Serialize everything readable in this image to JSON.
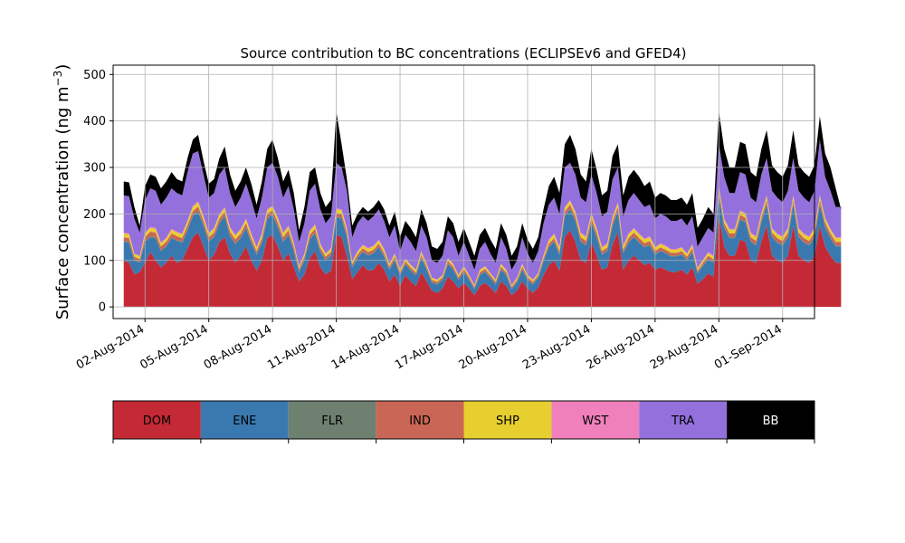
{
  "chart_data": {
    "type": "area",
    "stacked": true,
    "title": "Source contribution to BC concentrations (ECLIPSEv6 and GFED4)",
    "ylabel_main": "Surface concentration (ng m",
    "ylabel_sup": "−3",
    "ylabel_close": ")",
    "xlabel": "",
    "ylim": [
      -25,
      520
    ],
    "yticks": [
      0,
      100,
      200,
      300,
      400,
      500
    ],
    "x_start": "2014-07-31T12:00",
    "x_end": "2014-09-02T12:00",
    "xticks": [
      {
        "date": "2014-08-02",
        "label": "02-Aug-2014"
      },
      {
        "date": "2014-08-05",
        "label": "05-Aug-2014"
      },
      {
        "date": "2014-08-08",
        "label": "08-Aug-2014"
      },
      {
        "date": "2014-08-11",
        "label": "11-Aug-2014"
      },
      {
        "date": "2014-08-14",
        "label": "14-Aug-2014"
      },
      {
        "date": "2014-08-17",
        "label": "17-Aug-2014"
      },
      {
        "date": "2014-08-20",
        "label": "20-Aug-2014"
      },
      {
        "date": "2014-08-23",
        "label": "23-Aug-2014"
      },
      {
        "date": "2014-08-26",
        "label": "26-Aug-2014"
      },
      {
        "date": "2014-08-29",
        "label": "29-Aug-2014"
      },
      {
        "date": "2014-09-01",
        "label": "01-Sep-2014"
      }
    ],
    "grid": true,
    "legend_position": "below",
    "series_colors": {
      "DOM": "#c42a36",
      "ENE": "#3a79b0",
      "FLR": "#6e8070",
      "IND": "#c96655",
      "SHP": "#e6cf2e",
      "WST": "#f080bb",
      "TRA": "#9370db",
      "BB": "#000000"
    },
    "legend": [
      {
        "label": "DOM",
        "color": "#c42a36",
        "text_color": "#000000"
      },
      {
        "label": "ENE",
        "color": "#3a79b0",
        "text_color": "#000000"
      },
      {
        "label": "FLR",
        "color": "#6e8070",
        "text_color": "#000000"
      },
      {
        "label": "IND",
        "color": "#c96655",
        "text_color": "#000000"
      },
      {
        "label": "SHP",
        "color": "#e6cf2e",
        "text_color": "#000000"
      },
      {
        "label": "WST",
        "color": "#f080bb",
        "text_color": "#000000"
      },
      {
        "label": "TRA",
        "color": "#9370db",
        "text_color": "#000000"
      },
      {
        "label": "BB",
        "color": "#000000",
        "text_color": "#ffffff"
      }
    ],
    "time_series": {
      "start": "2014-08-01T00:00",
      "step_hours": 6,
      "cumulative_note": "values are cumulative stack tops in ng m-3: DOM, +ENE, +FLR, +IND, +SHP, +WST, +TRA, +BB",
      "DOM": [
        100,
        95,
        70,
        75,
        95,
        118,
        100,
        85,
        95,
        110,
        95,
        100,
        125,
        150,
        160,
        130,
        100,
        112,
        140,
        150,
        115,
        95,
        110,
        130,
        100,
        78,
        100,
        148,
        155,
        130,
        100,
        115,
        85,
        55,
        70,
        105,
        120,
        85,
        70,
        78,
        155,
        150,
        110,
        60,
        75,
        90,
        78,
        80,
        95,
        80,
        55,
        70,
        45,
        68,
        55,
        45,
        75,
        55,
        35,
        30,
        40,
        65,
        55,
        40,
        52,
        40,
        25,
        45,
        52,
        42,
        30,
        55,
        45,
        25,
        35,
        55,
        40,
        30,
        42,
        68,
        90,
        100,
        78,
        150,
        165,
        140,
        100,
        95,
        140,
        110,
        80,
        85,
        135,
        160,
        80,
        100,
        110,
        100,
        90,
        95,
        80,
        85,
        80,
        75,
        75,
        80,
        70,
        85,
        50,
        60,
        72,
        65,
        195,
        130,
        110,
        110,
        145,
        140,
        100,
        95,
        140,
        175,
        110,
        100,
        95,
        110,
        175,
        110,
        100,
        95,
        110,
        175,
        130,
        110,
        95,
        95
      ],
      "ENE": [
        140,
        138,
        100,
        95,
        140,
        150,
        148,
        120,
        130,
        148,
        142,
        138,
        165,
        195,
        205,
        175,
        140,
        150,
        180,
        195,
        152,
        135,
        148,
        170,
        138,
        112,
        138,
        190,
        198,
        172,
        140,
        155,
        120,
        75,
        100,
        145,
        158,
        118,
        100,
        110,
        192,
        190,
        150,
        85,
        105,
        118,
        110,
        115,
        128,
        108,
        80,
        100,
        68,
        92,
        78,
        68,
        105,
        80,
        52,
        48,
        58,
        92,
        80,
        58,
        75,
        58,
        38,
        68,
        75,
        62,
        48,
        80,
        68,
        38,
        52,
        80,
        58,
        48,
        62,
        98,
        128,
        140,
        112,
        195,
        210,
        185,
        140,
        132,
        182,
        150,
        112,
        120,
        175,
        205,
        115,
        138,
        150,
        138,
        128,
        132,
        112,
        120,
        115,
        108,
        108,
        112,
        100,
        118,
        72,
        88,
        102,
        95,
        240,
        170,
        148,
        148,
        188,
        182,
        140,
        132,
        182,
        220,
        150,
        138,
        132,
        150,
        220,
        150,
        138,
        132,
        150,
        220,
        172,
        148,
        130,
        130
      ],
      "FLR": [
        142,
        140,
        102,
        97,
        142,
        152,
        150,
        122,
        132,
        150,
        144,
        140,
        167,
        197,
        207,
        177,
        142,
        152,
        182,
        197,
        154,
        137,
        150,
        172,
        140,
        114,
        140,
        192,
        200,
        174,
        142,
        157,
        122,
        77,
        102,
        147,
        160,
        120,
        102,
        112,
        194,
        192,
        152,
        87,
        107,
        120,
        112,
        117,
        130,
        110,
        82,
        102,
        70,
        94,
        80,
        70,
        107,
        82,
        54,
        50,
        60,
        94,
        82,
        60,
        77,
        60,
        40,
        70,
        77,
        64,
        50,
        82,
        70,
        40,
        54,
        82,
        60,
        50,
        64,
        100,
        130,
        142,
        114,
        197,
        212,
        187,
        142,
        134,
        184,
        152,
        114,
        122,
        177,
        207,
        117,
        140,
        152,
        140,
        130,
        134,
        114,
        122,
        117,
        110,
        110,
        114,
        102,
        120,
        74,
        90,
        104,
        97,
        242,
        172,
        150,
        150,
        190,
        184,
        142,
        134,
        184,
        222,
        152,
        140,
        134,
        152,
        222,
        152,
        140,
        134,
        152,
        222,
        174,
        150,
        132,
        132
      ],
      "IND": [
        150,
        148,
        108,
        103,
        150,
        162,
        160,
        130,
        140,
        158,
        152,
        148,
        176,
        206,
        216,
        186,
        150,
        160,
        190,
        205,
        162,
        145,
        158,
        180,
        148,
        120,
        148,
        200,
        208,
        182,
        150,
        165,
        130,
        82,
        108,
        155,
        168,
        127,
        108,
        118,
        202,
        200,
        160,
        92,
        113,
        126,
        118,
        123,
        136,
        116,
        87,
        108,
        74,
        98,
        85,
        74,
        112,
        87,
        58,
        54,
        64,
        99,
        87,
        64,
        82,
        64,
        43,
        74,
        82,
        68,
        54,
        87,
        74,
        43,
        58,
        87,
        64,
        54,
        68,
        105,
        136,
        148,
        120,
        205,
        220,
        195,
        150,
        142,
        192,
        160,
        120,
        128,
        185,
        215,
        123,
        148,
        160,
        148,
        137,
        142,
        120,
        128,
        123,
        116,
        116,
        120,
        108,
        126,
        78,
        95,
        110,
        102,
        250,
        180,
        158,
        158,
        198,
        192,
        150,
        142,
        192,
        230,
        160,
        148,
        142,
        160,
        230,
        160,
        148,
        142,
        160,
        230,
        182,
        158,
        140,
        140
      ],
      "SHP": [
        158,
        156,
        114,
        109,
        158,
        170,
        168,
        137,
        147,
        166,
        160,
        156,
        184,
        215,
        225,
        194,
        158,
        168,
        198,
        213,
        170,
        153,
        166,
        188,
        156,
        127,
        156,
        208,
        216,
        190,
        158,
        173,
        137,
        87,
        114,
        163,
        176,
        134,
        114,
        125,
        210,
        208,
        168,
        97,
        119,
        132,
        125,
        130,
        143,
        123,
        92,
        114,
        79,
        103,
        90,
        79,
        118,
        92,
        62,
        58,
        68,
        104,
        92,
        68,
        87,
        68,
        46,
        79,
        87,
        72,
        58,
        92,
        79,
        46,
        62,
        92,
        68,
        58,
        72,
        110,
        143,
        156,
        127,
        213,
        228,
        203,
        158,
        150,
        200,
        168,
        127,
        135,
        193,
        223,
        130,
        156,
        168,
        156,
        145,
        150,
        127,
        135,
        130,
        123,
        123,
        127,
        114,
        133,
        83,
        100,
        116,
        108,
        258,
        188,
        166,
        166,
        206,
        200,
        158,
        150,
        200,
        238,
        168,
        156,
        150,
        168,
        238,
        168,
        156,
        150,
        168,
        238,
        190,
        166,
        148,
        148
      ],
      "WST": [
        160,
        158,
        115,
        110,
        160,
        172,
        170,
        139,
        149,
        168,
        162,
        158,
        186,
        217,
        227,
        196,
        160,
        170,
        200,
        215,
        172,
        155,
        168,
        190,
        158,
        129,
        158,
        210,
        218,
        192,
        160,
        175,
        139,
        88,
        115,
        165,
        178,
        136,
        115,
        127,
        212,
        210,
        170,
        98,
        120,
        134,
        127,
        132,
        145,
        125,
        93,
        115,
        80,
        104,
        91,
        80,
        120,
        93,
        63,
        59,
        69,
        105,
        93,
        69,
        88,
        69,
        47,
        80,
        88,
        73,
        59,
        93,
        80,
        47,
        63,
        93,
        69,
        59,
        73,
        112,
        145,
        158,
        129,
        215,
        230,
        205,
        160,
        152,
        202,
        170,
        129,
        137,
        195,
        225,
        132,
        158,
        170,
        158,
        147,
        152,
        129,
        137,
        132,
        125,
        125,
        129,
        115,
        135,
        84,
        101,
        118,
        110,
        260,
        190,
        168,
        168,
        208,
        202,
        160,
        152,
        202,
        240,
        170,
        158,
        152,
        170,
        240,
        170,
        158,
        152,
        170,
        240,
        192,
        168,
        150,
        150
      ],
      "TRA": [
        240,
        238,
        190,
        160,
        230,
        255,
        250,
        220,
        235,
        255,
        245,
        240,
        290,
        330,
        335,
        285,
        235,
        245,
        285,
        300,
        245,
        215,
        235,
        265,
        230,
        190,
        235,
        300,
        310,
        280,
        235,
        260,
        210,
        140,
        180,
        250,
        265,
        210,
        180,
        195,
        310,
        300,
        250,
        150,
        180,
        195,
        185,
        195,
        210,
        185,
        150,
        175,
        120,
        155,
        140,
        120,
        175,
        150,
        100,
        95,
        110,
        165,
        150,
        110,
        140,
        110,
        80,
        125,
        140,
        115,
        95,
        150,
        125,
        80,
        100,
        150,
        115,
        95,
        120,
        180,
        220,
        235,
        200,
        300,
        310,
        285,
        235,
        225,
        285,
        245,
        195,
        205,
        275,
        300,
        195,
        230,
        245,
        230,
        215,
        220,
        190,
        200,
        195,
        185,
        185,
        190,
        175,
        195,
        130,
        150,
        170,
        160,
        350,
        280,
        245,
        245,
        290,
        285,
        235,
        225,
        285,
        320,
        250,
        235,
        225,
        250,
        320,
        250,
        235,
        225,
        250,
        360,
        280,
        250,
        215,
        215
      ],
      "BB": [
        270,
        268,
        215,
        175,
        260,
        285,
        280,
        255,
        270,
        290,
        275,
        270,
        320,
        360,
        370,
        315,
        265,
        275,
        320,
        345,
        285,
        250,
        270,
        300,
        265,
        220,
        270,
        340,
        360,
        320,
        270,
        295,
        245,
        165,
        215,
        290,
        300,
        245,
        215,
        230,
        420,
        350,
        275,
        175,
        200,
        215,
        205,
        215,
        230,
        210,
        175,
        205,
        150,
        185,
        170,
        150,
        210,
        180,
        130,
        125,
        140,
        195,
        180,
        140,
        170,
        140,
        110,
        155,
        170,
        145,
        125,
        180,
        155,
        110,
        130,
        180,
        145,
        125,
        150,
        210,
        260,
        280,
        245,
        350,
        370,
        340,
        285,
        270,
        340,
        295,
        240,
        250,
        325,
        350,
        240,
        280,
        295,
        280,
        260,
        270,
        235,
        245,
        240,
        230,
        230,
        235,
        220,
        245,
        170,
        190,
        215,
        200,
        420,
        340,
        300,
        300,
        355,
        350,
        290,
        280,
        340,
        380,
        305,
        290,
        280,
        305,
        380,
        305,
        290,
        280,
        305,
        410,
        330,
        300,
        255,
        210
      ]
    }
  }
}
